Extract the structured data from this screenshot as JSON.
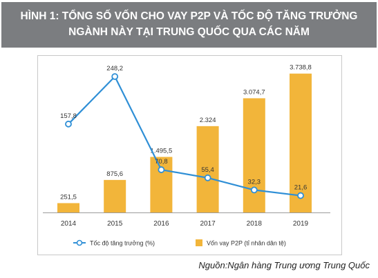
{
  "title": {
    "line1": "HÌNH 1: TỔNG SỐ VỐN CHO VAY P2P VÀ TỐC ĐỘ TĂNG TRƯỞNG",
    "line2": "NGÀNH NÀY TẠI TRUNG QUỐC QUA CÁC NĂM"
  },
  "source": "Nguồn:Ngân hàng Trung ương Trung Quốc",
  "chart_data": {
    "type": "bar",
    "categories": [
      "2014",
      "2015",
      "2016",
      "2017",
      "2018",
      "2019"
    ],
    "series": [
      {
        "name": "Vốn vay P2P (tỉ nhân dân tệ)",
        "kind": "bar",
        "color": "#f2b53a",
        "values": [
          251.5,
          875.6,
          1495.5,
          2324,
          3074.7,
          3738.8
        ],
        "labels": [
          "251,5",
          "875,6",
          "1.495,5",
          "2.324",
          "3.074,7",
          "3.738,8"
        ]
      },
      {
        "name": "Tốc độ tăng trưởng (%)",
        "kind": "line",
        "color": "#2f8fd6",
        "values": [
          157.8,
          248.2,
          70.8,
          55.4,
          32.3,
          21.6
        ],
        "labels": [
          "157,8",
          "248,2",
          "70,8",
          "55,4",
          "32,3",
          "21,6"
        ]
      }
    ],
    "bar_axis_max": 3900,
    "line_axis_max": 260,
    "grid": false,
    "legend_position": "bottom"
  }
}
